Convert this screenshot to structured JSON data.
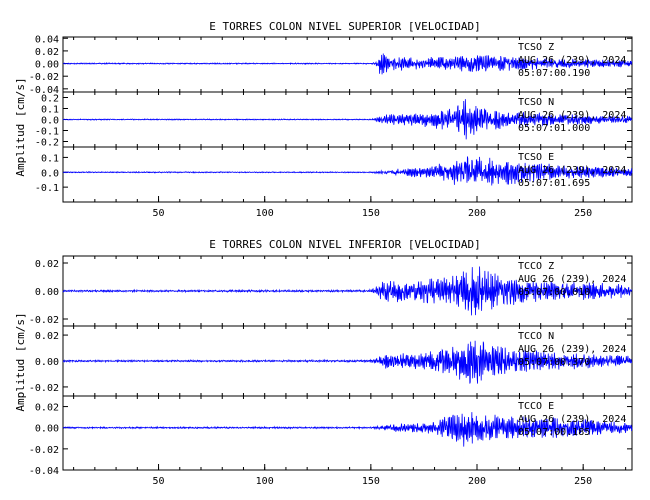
{
  "colors": {
    "trace": "#0000ff",
    "axes": "#000000",
    "text": "#000000",
    "background": "#ffffff"
  },
  "chart_data": [
    {
      "type": "line",
      "title": "E TORRES COLON NIVEL SUPERIOR [VELOCIDAD]",
      "ylabel": "Amplitud [cm/s]",
      "xlim": [
        5,
        273
      ],
      "xticks": [
        "50",
        "100",
        "150",
        "200",
        "250"
      ],
      "panels": [
        {
          "ylim": [
            -0.045,
            0.042
          ],
          "yticks": [
            "0.04",
            "0.02",
            "0.00",
            "-0.02",
            "-0.04"
          ],
          "label_lines": [
            "TCSO Z",
            "AUG 26 (239), 2024",
            "05:07:00.190"
          ],
          "envelope": {
            "x": [
              5,
              150,
              152,
              154,
              160,
              175,
              190,
              200,
              215,
              240,
              273
            ],
            "amp": [
              0.001,
              0.001,
              0.002,
              0.02,
              0.012,
              0.01,
              0.014,
              0.015,
              0.012,
              0.008,
              0.006
            ]
          }
        },
        {
          "ylim": [
            -0.25,
            0.25
          ],
          "yticks": [
            "0.2",
            "0.1",
            "0.0",
            "-0.1",
            "-0.2"
          ],
          "label_lines": [
            "TCSO N",
            "AUG 26 (239), 2024",
            "05:07:01.000"
          ],
          "envelope": {
            "x": [
              5,
              150,
              152,
              156,
              170,
              185,
              195,
              200,
              215,
              240,
              273
            ],
            "amp": [
              0.005,
              0.005,
              0.01,
              0.05,
              0.06,
              0.1,
              0.2,
              0.13,
              0.08,
              0.05,
              0.03
            ]
          }
        },
        {
          "ylim": [
            -0.2,
            0.17
          ],
          "yticks": [
            "0.1",
            "0.0",
            "-0.1"
          ],
          "label_lines": [
            "TCSO E",
            "AUG 26 (239), 2024",
            "05:07:01.695"
          ],
          "envelope": {
            "x": [
              5,
              150,
              153,
              160,
              180,
              195,
              205,
              220,
              240,
              273
            ],
            "amp": [
              0.004,
              0.004,
              0.01,
              0.02,
              0.05,
              0.12,
              0.1,
              0.08,
              0.05,
              0.03
            ]
          }
        }
      ]
    },
    {
      "type": "line",
      "title": "E TORRES COLON NIVEL INFERIOR [VELOCIDAD]",
      "ylabel": "Amplitud [cm/s]",
      "xlim": [
        5,
        273
      ],
      "xticks": [
        "50",
        "100",
        "150",
        "200",
        "250"
      ],
      "panels": [
        {
          "ylim": [
            -0.025,
            0.025
          ],
          "yticks": [
            "0.02",
            "0.00",
            "-0.02"
          ],
          "label_lines": [
            "TCCO Z",
            "AUG 26 (239), 2024",
            "05:07:00.010"
          ],
          "envelope": {
            "x": [
              5,
              148,
              151,
              155,
              175,
              190,
              200,
              210,
              230,
              273
            ],
            "amp": [
              0.0007,
              0.0008,
              0.002,
              0.008,
              0.009,
              0.012,
              0.02,
              0.012,
              0.008,
              0.005
            ]
          }
        },
        {
          "ylim": [
            -0.027,
            0.027
          ],
          "yticks": [
            "0.02",
            "0.00",
            "-0.02"
          ],
          "label_lines": [
            "TCCO N",
            "AUG 26 (239), 2024",
            "05:07:00.370"
          ],
          "envelope": {
            "x": [
              5,
              148,
              152,
              156,
              175,
              190,
              197,
              205,
              230,
              273
            ],
            "amp": [
              0.0007,
              0.0008,
              0.002,
              0.006,
              0.007,
              0.012,
              0.022,
              0.014,
              0.008,
              0.004
            ]
          }
        },
        {
          "ylim": [
            -0.04,
            0.03
          ],
          "yticks": [
            "0.02",
            "0.00",
            "-0.02",
            "-0.04"
          ],
          "label_lines": [
            "TCCO E",
            "AUG 26 (239), 2024",
            "05:07:00.185"
          ],
          "envelope": {
            "x": [
              5,
              150,
              154,
              160,
              180,
              193,
              200,
              215,
              240,
              273
            ],
            "amp": [
              0.0008,
              0.0009,
              0.002,
              0.004,
              0.006,
              0.02,
              0.015,
              0.012,
              0.01,
              0.005
            ]
          }
        }
      ]
    }
  ]
}
